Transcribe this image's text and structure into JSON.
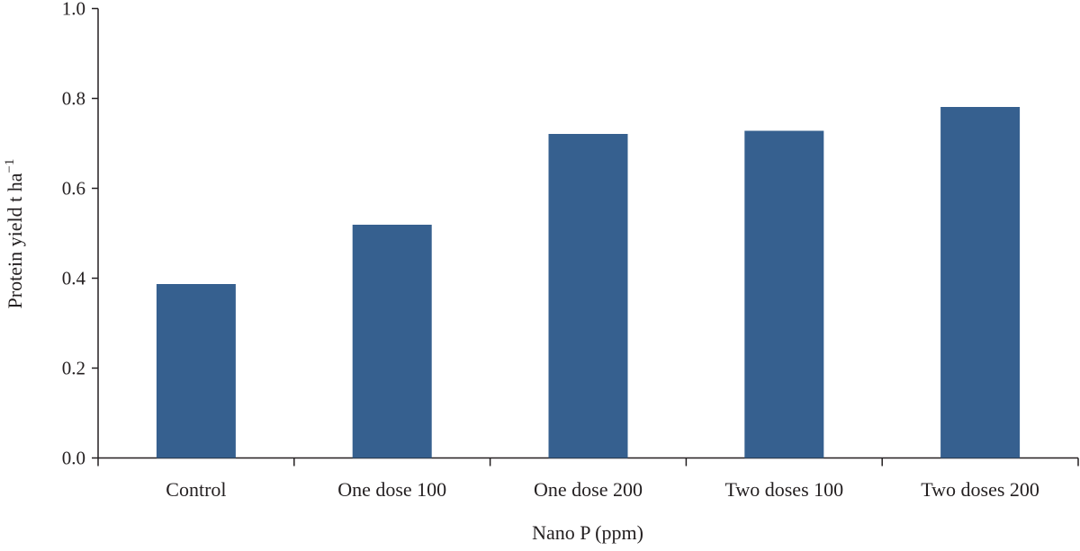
{
  "chart_data": {
    "type": "bar",
    "categories": [
      "Control",
      "One dose 100",
      "One dose 200",
      "Two doses 100",
      "Two doses 200"
    ],
    "values": [
      0.387,
      0.519,
      0.721,
      0.728,
      0.781
    ],
    "xlabel": "Nano P (ppm)",
    "ylabel": "Protein yield t ha",
    "ylabel_superscript": "−1",
    "ylim": [
      0,
      1.0
    ],
    "yticks": [
      "0.0",
      "0.2",
      "0.4",
      "0.6",
      "0.8",
      "1.0"
    ],
    "grid": false,
    "bar_color": "#36608f"
  }
}
